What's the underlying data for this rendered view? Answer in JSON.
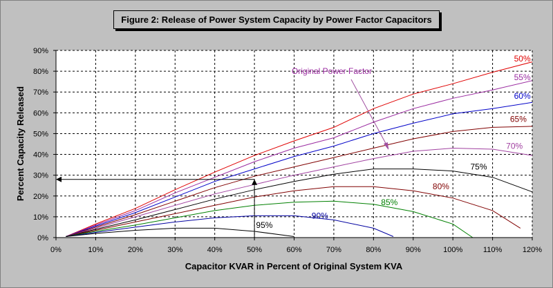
{
  "chart_data": {
    "type": "line",
    "title": "Figure 2: Release of Power System Capacity by Power Factor Capacitors",
    "xlabel": "Capacitor KVAR in Percent of Original System KVA",
    "ylabel": "Percent Capacity Released",
    "xlim": [
      0,
      120
    ],
    "ylim": [
      0,
      90
    ],
    "x_ticks": [
      "0%",
      "10%",
      "20%",
      "30%",
      "40%",
      "50%",
      "60%",
      "70%",
      "80%",
      "90%",
      "100%",
      "110%",
      "120%"
    ],
    "y_ticks": [
      "0%",
      "10%",
      "20%",
      "30%",
      "40%",
      "50%",
      "60%",
      "70%",
      "80%",
      "90%"
    ],
    "grid": true,
    "legend_title": "Original Power Factor",
    "series": [
      {
        "name": "50%",
        "color": "#e00000",
        "points": [
          [
            2.5,
            0.5
          ],
          [
            10,
            6.5
          ],
          [
            20,
            14
          ],
          [
            30,
            23
          ],
          [
            40,
            31.5
          ],
          [
            50,
            39.5
          ],
          [
            60,
            46.5
          ],
          [
            70,
            53
          ],
          [
            80,
            62
          ],
          [
            90,
            69
          ],
          [
            100,
            74
          ],
          [
            110,
            79.5
          ],
          [
            120,
            84.5
          ]
        ]
      },
      {
        "name": "55%",
        "color": "#9a2aa0",
        "points": [
          [
            2.5,
            0.5
          ],
          [
            10,
            6
          ],
          [
            20,
            13
          ],
          [
            30,
            21.5
          ],
          [
            40,
            29
          ],
          [
            50,
            36.5
          ],
          [
            60,
            43
          ],
          [
            70,
            48
          ],
          [
            80,
            55.5
          ],
          [
            90,
            62
          ],
          [
            100,
            67
          ],
          [
            110,
            71
          ],
          [
            120,
            75.5
          ]
        ]
      },
      {
        "name": "60%",
        "color": "#0000c8",
        "points": [
          [
            2.5,
            0.5
          ],
          [
            10,
            5.5
          ],
          [
            20,
            12
          ],
          [
            30,
            19.5
          ],
          [
            40,
            27
          ],
          [
            50,
            33
          ],
          [
            60,
            39
          ],
          [
            70,
            44
          ],
          [
            80,
            50
          ],
          [
            90,
            55
          ],
          [
            100,
            59.5
          ],
          [
            110,
            62
          ],
          [
            120,
            65
          ]
        ]
      },
      {
        "name": "65%",
        "color": "#800000",
        "points": [
          [
            2.5,
            0.5
          ],
          [
            10,
            5
          ],
          [
            20,
            11
          ],
          [
            30,
            17.5
          ],
          [
            40,
            24
          ],
          [
            50,
            29.5
          ],
          [
            60,
            34
          ],
          [
            70,
            38.5
          ],
          [
            80,
            43
          ],
          [
            90,
            47.5
          ],
          [
            100,
            51
          ],
          [
            110,
            53
          ],
          [
            120,
            53.5
          ]
        ]
      },
      {
        "name": "70%",
        "color": "#a040a0",
        "points": [
          [
            2.5,
            0.5
          ],
          [
            10,
            4.5
          ],
          [
            20,
            10
          ],
          [
            30,
            15.5
          ],
          [
            40,
            21
          ],
          [
            50,
            25.5
          ],
          [
            60,
            30
          ],
          [
            70,
            34
          ],
          [
            80,
            38
          ],
          [
            90,
            41.5
          ],
          [
            100,
            43
          ],
          [
            110,
            42.5
          ],
          [
            120,
            39.5
          ]
        ]
      },
      {
        "name": "75%",
        "color": "#000000",
        "points": [
          [
            2.5,
            0.5
          ],
          [
            10,
            4
          ],
          [
            20,
            8.5
          ],
          [
            30,
            13.5
          ],
          [
            40,
            18.5
          ],
          [
            50,
            23
          ],
          [
            60,
            27
          ],
          [
            70,
            30.5
          ],
          [
            80,
            33
          ],
          [
            90,
            33
          ],
          [
            100,
            32
          ],
          [
            110,
            29
          ],
          [
            120,
            22
          ]
        ]
      },
      {
        "name": "80%",
        "color": "#800000",
        "points": [
          [
            2.5,
            0.5
          ],
          [
            10,
            3.5
          ],
          [
            20,
            7.5
          ],
          [
            30,
            11.5
          ],
          [
            40,
            15.5
          ],
          [
            50,
            19.5
          ],
          [
            60,
            22.5
          ],
          [
            70,
            24.5
          ],
          [
            80,
            24.5
          ],
          [
            90,
            22.5
          ],
          [
            100,
            19
          ],
          [
            110,
            13
          ],
          [
            117,
            4.5
          ]
        ]
      },
      {
        "name": "85%",
        "color": "#008000",
        "points": [
          [
            2.5,
            0.5
          ],
          [
            10,
            3
          ],
          [
            20,
            6
          ],
          [
            30,
            9.5
          ],
          [
            40,
            13
          ],
          [
            50,
            15.5
          ],
          [
            60,
            17
          ],
          [
            70,
            17.5
          ],
          [
            80,
            16
          ],
          [
            90,
            12.5
          ],
          [
            100,
            6.5
          ],
          [
            105,
            0
          ]
        ]
      },
      {
        "name": "90%",
        "color": "#0000a0",
        "points": [
          [
            2.5,
            0.5
          ],
          [
            10,
            2.5
          ],
          [
            20,
            5
          ],
          [
            30,
            7.5
          ],
          [
            40,
            9.5
          ],
          [
            50,
            10.5
          ],
          [
            60,
            10.5
          ],
          [
            70,
            8.5
          ],
          [
            80,
            4.5
          ],
          [
            85,
            0.5
          ]
        ]
      },
      {
        "name": "95%",
        "color": "#000000",
        "points": [
          [
            2.5,
            0.5
          ],
          [
            10,
            2
          ],
          [
            20,
            3.5
          ],
          [
            30,
            4.5
          ],
          [
            40,
            4.5
          ],
          [
            50,
            3
          ],
          [
            60,
            0.5
          ]
        ]
      }
    ],
    "series_labels": [
      {
        "text": "50%",
        "x": 117.5,
        "y": 86,
        "color": "#e00000"
      },
      {
        "text": "55%",
        "x": 117.5,
        "y": 77,
        "color": "#9a2aa0"
      },
      {
        "text": "60%",
        "x": 117.5,
        "y": 68,
        "color": "#0000c8"
      },
      {
        "text": "65%",
        "x": 116.5,
        "y": 57,
        "color": "#800000"
      },
      {
        "text": "70%",
        "x": 115.5,
        "y": 44,
        "color": "#a040a0"
      },
      {
        "text": "75%",
        "x": 106.5,
        "y": 34,
        "color": "#000000"
      },
      {
        "text": "80%",
        "x": 97,
        "y": 24.5,
        "color": "#800000"
      },
      {
        "text": "85%",
        "x": 84,
        "y": 17,
        "color": "#008000"
      },
      {
        "text": "90%",
        "x": 66.5,
        "y": 10.5,
        "color": "#0000a0"
      },
      {
        "text": "95%",
        "x": 52.5,
        "y": 6,
        "color": "#000000"
      }
    ],
    "annotation": {
      "text": "Original Power Factor",
      "color": "#9a2aa0"
    },
    "example_line": {
      "x": 50,
      "y": 28
    }
  }
}
